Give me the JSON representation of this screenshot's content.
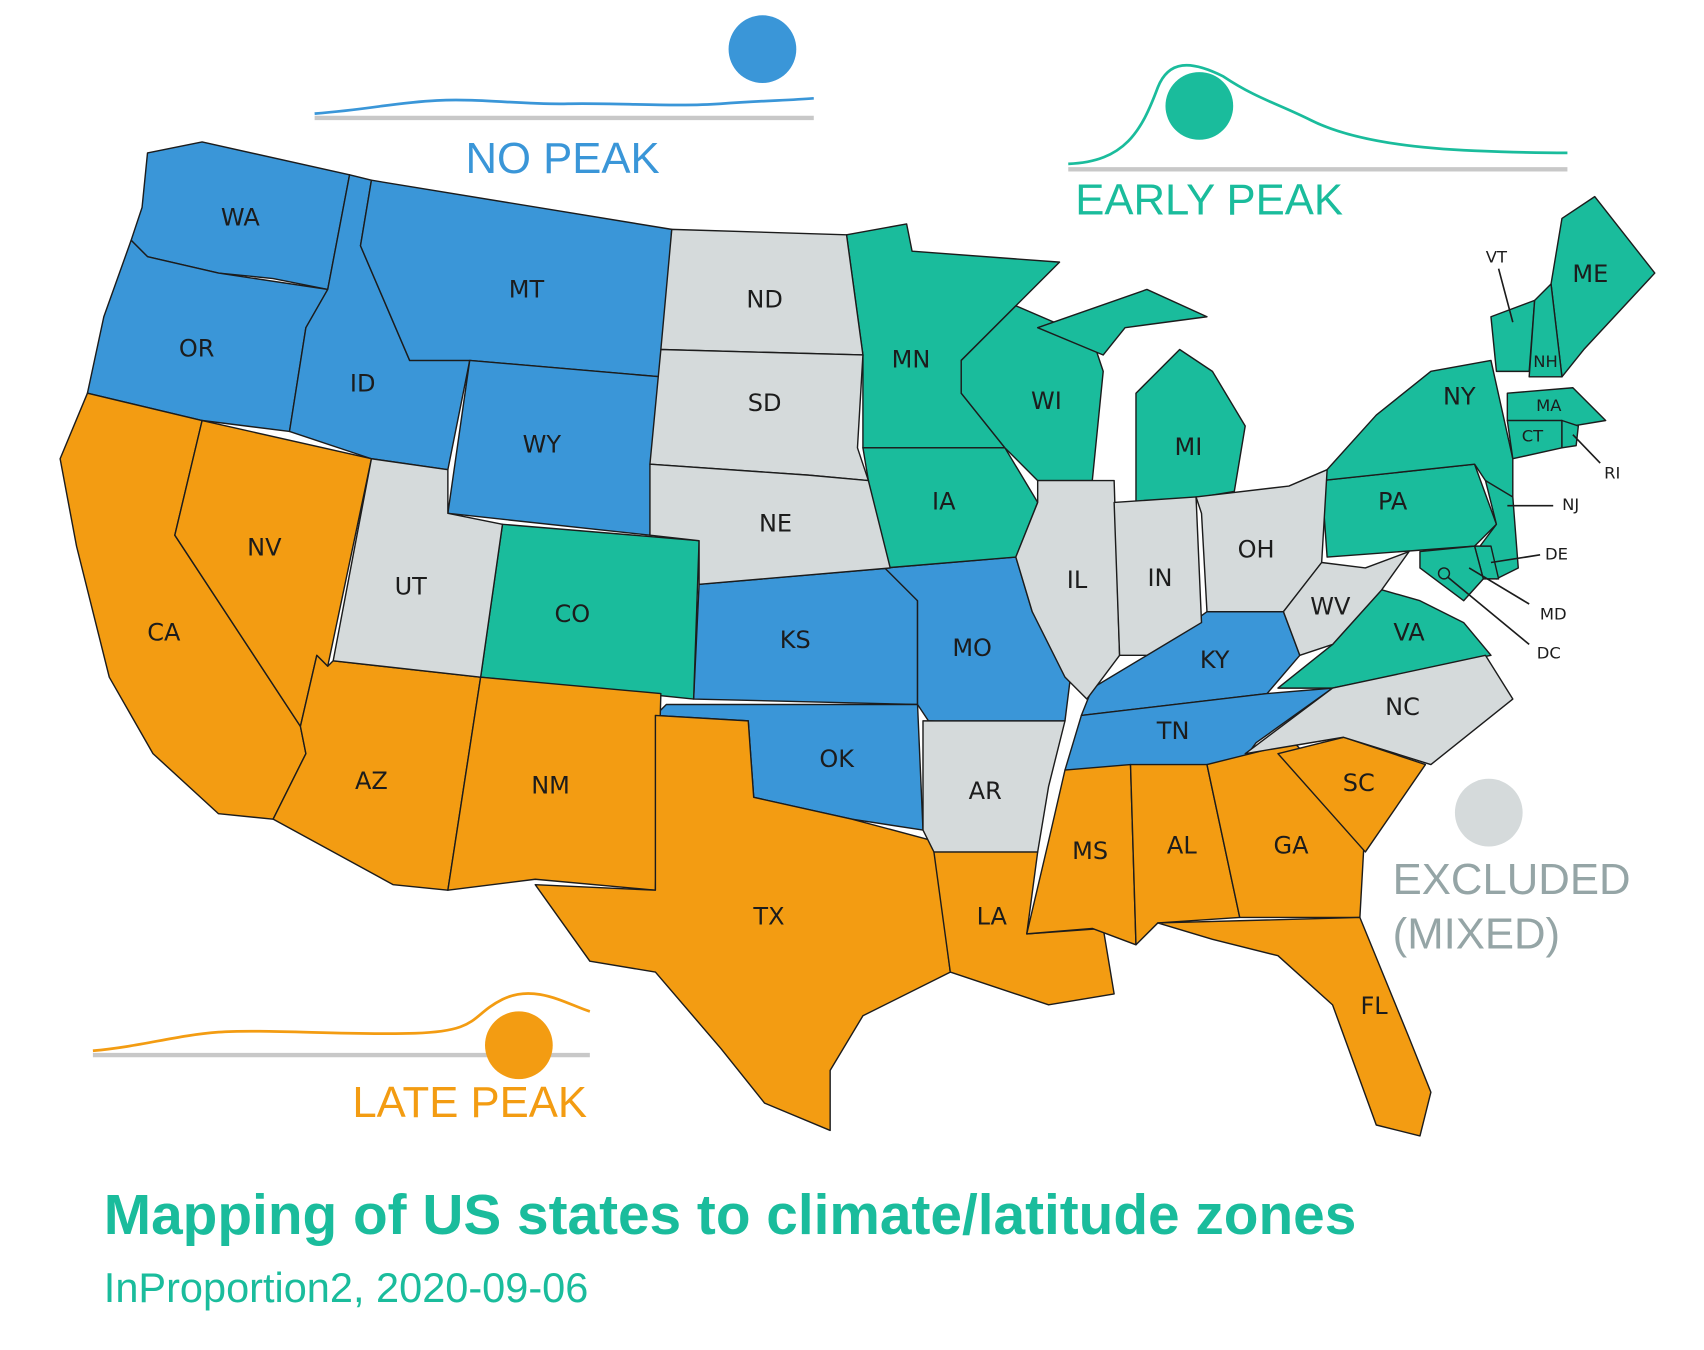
{
  "title": "Mapping of US states to climate/latitude zones",
  "subtitle": "InProportion2, 2020-09-06",
  "zones": [
    {
      "label": [
        "NO PEAK"
      ],
      "color": "#3a96d8",
      "states": [
        "WA",
        "OR",
        "ID",
        "MT",
        "WY",
        "KS",
        "OK",
        "MO",
        "KY",
        "TN"
      ]
    },
    {
      "label": [
        "EARLY PEAK"
      ],
      "color": "#1abc9c",
      "states": [
        "CO",
        "MN",
        "IA",
        "WI",
        "MI",
        "PA",
        "NY",
        "VA",
        "ME",
        "VT",
        "NH",
        "MA",
        "CT",
        "RI",
        "NJ",
        "DE",
        "MD",
        "DC"
      ]
    },
    {
      "label": [
        "LATE PEAK"
      ],
      "color": "#f39c12",
      "states": [
        "CA",
        "NV",
        "AZ",
        "NM",
        "TX",
        "LA",
        "MS",
        "AL",
        "GA",
        "SC",
        "FL"
      ]
    },
    {
      "label": [
        "EXCLUDED",
        "(MIXED)"
      ],
      "color": "#d5dadb",
      "text_color": "#95a5a6",
      "states": [
        "ND",
        "SD",
        "NE",
        "UT",
        "AR",
        "IL",
        "IN",
        "OH",
        "WV",
        "NC"
      ]
    }
  ]
}
